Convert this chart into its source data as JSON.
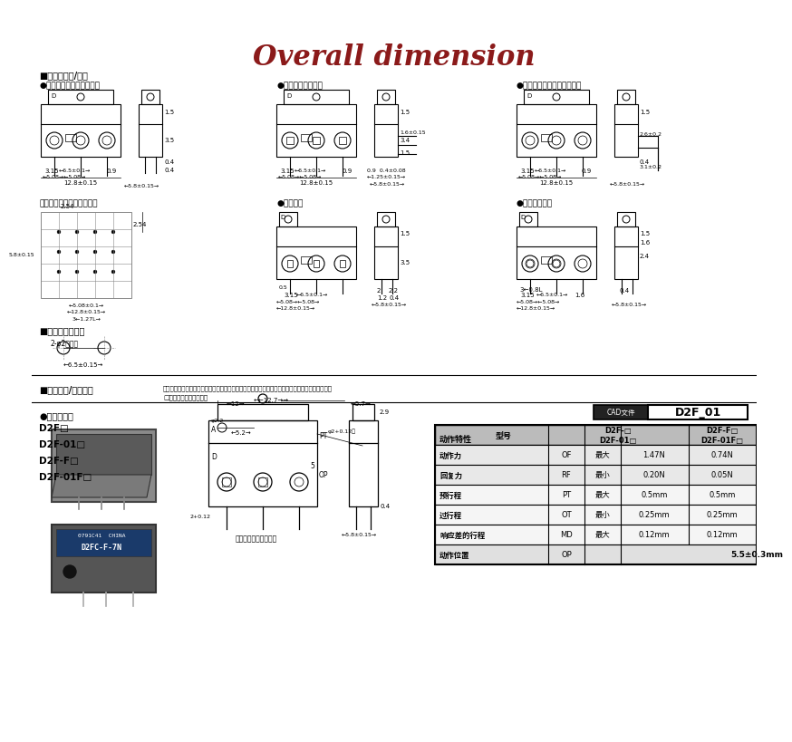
{
  "title": "Overall dimension",
  "title_color": "#8B1A1A",
  "title_fontsize": 22,
  "bg_color": "#FFFFFF",
  "s1_header": "■端子的种类/形状",
  "sub1a": "●印刷基板用端子（直型）",
  "sub1b": "●印刷基板独立端子",
  "sub1c": "●印刷基板用端子（直角型）",
  "sub2a": "印刷基板加工尺寸（参考）",
  "sub2b": "●焊接端子",
  "sub2c": "●焊接小型端子",
  "s2_header": "■安装孔加工尺寸",
  "s3_header": "■外形尺寸/动作特性",
  "s3_note1": "（图例、图纸为印刷基板用端子的情况。独立端子、焊接端子、直角端子被省略了，请参考前页。）",
  "s3_note2": "□中填入端子规格符号。",
  "s4_header": "●针状按鈕型",
  "model_list": [
    "D2F□",
    "D2F-01□",
    "D2F-F□",
    "D2F-01F□"
  ],
  "cad_label": "CAD文件",
  "cad_value": "D2F_01",
  "note_bottom": "（不包括接口电费量）",
  "mounting_label": "2-φ2安装孔",
  "table_data": [
    [
      "动作力",
      "OF",
      "最大",
      "1.47N",
      "0.74N"
    ],
    [
      "回复力",
      "RF",
      "最小",
      "0.20N",
      "0.05N"
    ],
    [
      "预行程",
      "PT",
      "最大",
      "0.5mm",
      "0.5mm"
    ],
    [
      "过行程",
      "OT",
      "最小",
      "0.25mm",
      "0.25mm"
    ],
    [
      "响应差的行程",
      "MD",
      "最大",
      "0.12mm",
      "0.12mm"
    ],
    [
      "动作位置",
      "OP",
      "",
      "5.5±0.3mm",
      ""
    ]
  ]
}
